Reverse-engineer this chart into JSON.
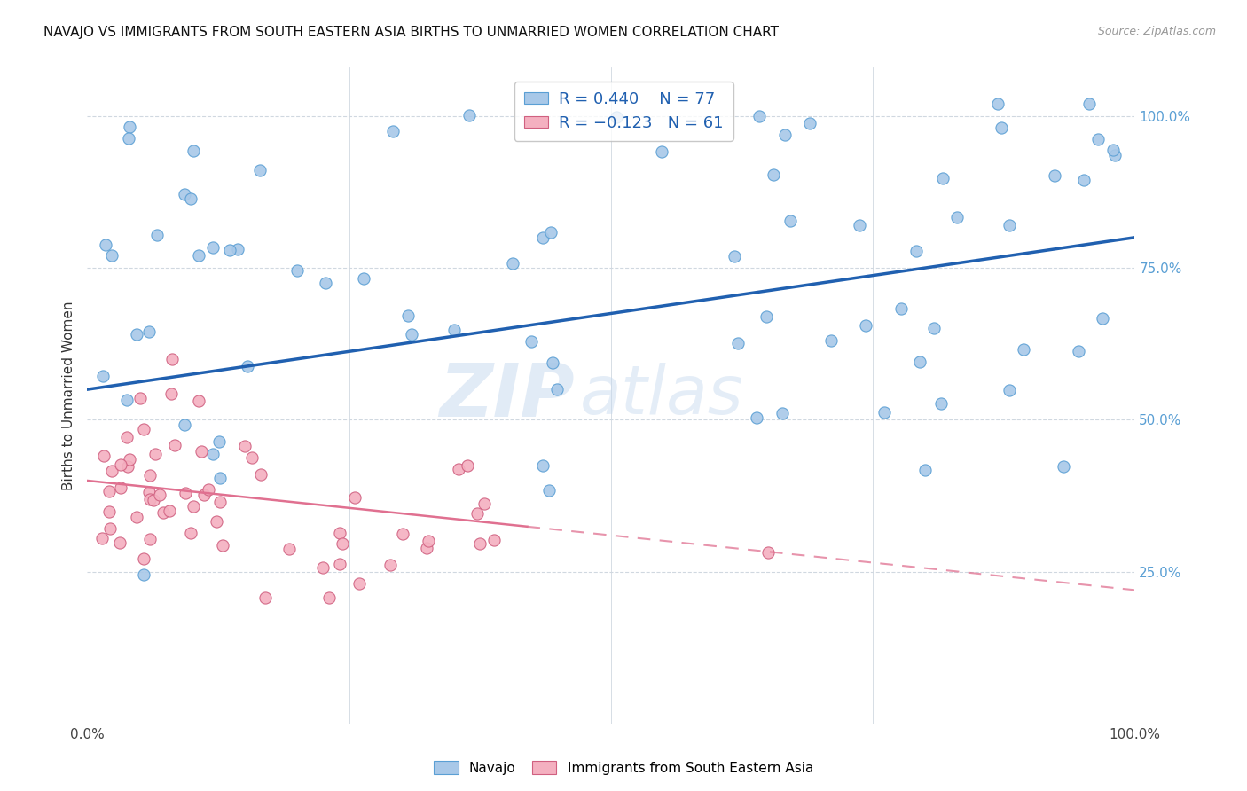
{
  "title": "NAVAJO VS IMMIGRANTS FROM SOUTH EASTERN ASIA BIRTHS TO UNMARRIED WOMEN CORRELATION CHART",
  "source": "Source: ZipAtlas.com",
  "ylabel": "Births to Unmarried Women",
  "watermark_zip": "ZIP",
  "watermark_atlas": "atlas",
  "blue_color": "#a8c8e8",
  "blue_edge": "#5a9fd4",
  "blue_line": "#2060b0",
  "pink_color": "#f4b0c0",
  "pink_edge": "#d06080",
  "pink_line": "#e07090",
  "legend_R1": "R = 0.440",
  "legend_N1": "N = 77",
  "legend_R2": "R = -0.123",
  "legend_N2": "N = 61",
  "blue_R": 0.44,
  "pink_R": -0.123,
  "right_tick_color": "#5a9fd4",
  "grid_color": "#d0d8e0",
  "background_color": "#ffffff",
  "title_fontsize": 11,
  "ylabel_fontsize": 11,
  "tick_fontsize": 11,
  "legend_fontsize": 13,
  "source_fontsize": 9,
  "navajo_seed": 101,
  "sea_seed": 202
}
